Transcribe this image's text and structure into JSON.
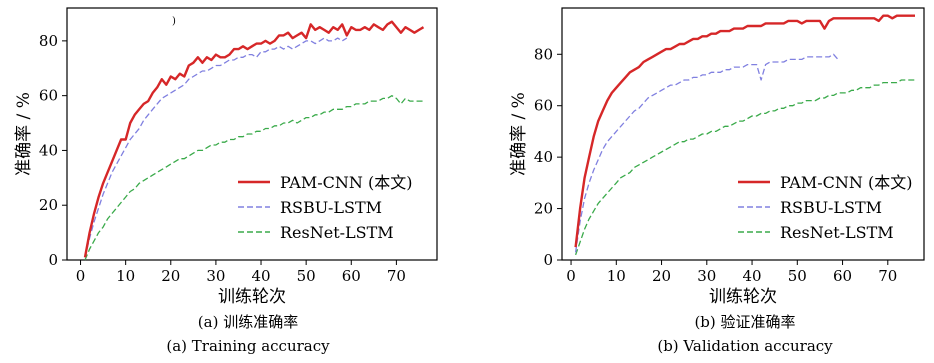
{
  "colors": {
    "pam": "#d62728",
    "rsbu": "#8080e0",
    "resnet": "#3aaa4a"
  },
  "chart_data": [
    {
      "type": "line",
      "stray_mark": ")",
      "xlabel": "训练轮次",
      "ylabel": "准确率 / %",
      "xlim": [
        -3,
        79
      ],
      "ylim": [
        0,
        92
      ],
      "xticks": [
        0,
        10,
        20,
        30,
        40,
        50,
        60,
        70
      ],
      "yticks": [
        0,
        20,
        40,
        60,
        80
      ],
      "legend_position": "lower-right",
      "caption_zh": "(a) 训练准确率",
      "caption_en": "(a) Training accuracy",
      "series": [
        {
          "name": "PAM-CNN (本文)",
          "style": "solid",
          "color_key": "pam",
          "x": [
            1,
            2,
            3,
            4,
            5,
            6,
            7,
            8,
            9,
            10,
            11,
            12,
            13,
            14,
            15,
            16,
            17,
            18,
            19,
            20,
            21,
            22,
            23,
            24,
            25,
            26,
            27,
            28,
            29,
            30,
            31,
            32,
            33,
            34,
            35,
            36,
            37,
            38,
            39,
            40,
            41,
            42,
            43,
            44,
            45,
            46,
            47,
            48,
            49,
            50,
            51,
            52,
            53,
            54,
            55,
            56,
            57,
            58,
            59,
            60,
            61,
            62,
            63,
            64,
            65,
            66,
            67,
            68,
            69,
            70,
            71,
            72,
            73,
            74,
            75,
            76
          ],
          "values": [
            1,
            10,
            17,
            23,
            28,
            32,
            36,
            40,
            44,
            44,
            50,
            53,
            55,
            57,
            58,
            61,
            63,
            66,
            64,
            67,
            66,
            68,
            67,
            71,
            72,
            74,
            72,
            74,
            73,
            75,
            74,
            74,
            75,
            77,
            77,
            78,
            77,
            78,
            79,
            79,
            80,
            79,
            80,
            82,
            82,
            83,
            81,
            82,
            83,
            81,
            86,
            84,
            85,
            84,
            83,
            85,
            84,
            86,
            82,
            85,
            84,
            84,
            85,
            84,
            86,
            85,
            84,
            86,
            87,
            85,
            83,
            85,
            84,
            83,
            84,
            85
          ]
        },
        {
          "name": "RSBU-LSTM",
          "style": "dash",
          "color_key": "rsbu",
          "x": [
            1,
            2,
            3,
            4,
            5,
            6,
            7,
            8,
            9,
            10,
            11,
            12,
            13,
            14,
            15,
            16,
            17,
            18,
            19,
            20,
            21,
            22,
            23,
            24,
            25,
            26,
            27,
            28,
            29,
            30,
            31,
            32,
            33,
            34,
            35,
            36,
            37,
            38,
            39,
            40,
            41,
            42,
            43,
            44,
            45,
            46,
            47,
            48,
            49,
            50,
            51,
            52,
            53,
            54,
            55,
            56,
            57,
            58,
            59
          ],
          "values": [
            1,
            8,
            14,
            19,
            24,
            28,
            32,
            35,
            38,
            41,
            44,
            46,
            48,
            51,
            53,
            55,
            57,
            59,
            60,
            61,
            62,
            63,
            64,
            66,
            67,
            68,
            69,
            69,
            70,
            71,
            71,
            72,
            73,
            73,
            74,
            74,
            75,
            75,
            74,
            76,
            76,
            77,
            77,
            78,
            77,
            78,
            77,
            78,
            79,
            80,
            80,
            79,
            80,
            81,
            80,
            80,
            81,
            80,
            81
          ]
        },
        {
          "name": "ResNet-LSTM",
          "style": "dash",
          "color_key": "resnet",
          "x": [
            1,
            2,
            3,
            4,
            5,
            6,
            7,
            8,
            9,
            10,
            11,
            12,
            13,
            14,
            15,
            16,
            17,
            18,
            19,
            20,
            21,
            22,
            23,
            24,
            25,
            26,
            27,
            28,
            29,
            30,
            31,
            32,
            33,
            34,
            35,
            36,
            37,
            38,
            39,
            40,
            41,
            42,
            43,
            44,
            45,
            46,
            47,
            48,
            49,
            50,
            51,
            52,
            53,
            54,
            55,
            56,
            57,
            58,
            59,
            60,
            61,
            62,
            63,
            64,
            65,
            66,
            67,
            68,
            69,
            70,
            71,
            72,
            73,
            74,
            75,
            76
          ],
          "values": [
            0,
            4,
            7,
            10,
            12,
            15,
            17,
            19,
            21,
            23,
            25,
            26,
            28,
            29,
            30,
            31,
            32,
            33,
            34,
            35,
            36,
            37,
            37,
            38,
            39,
            40,
            40,
            41,
            42,
            42,
            43,
            43,
            44,
            44,
            45,
            45,
            46,
            46,
            47,
            47,
            48,
            48,
            49,
            49,
            50,
            50,
            51,
            50,
            51,
            52,
            52,
            53,
            53,
            54,
            54,
            55,
            55,
            55,
            56,
            56,
            57,
            57,
            57,
            58,
            58,
            58,
            59,
            59,
            60,
            59,
            57,
            59,
            58,
            58,
            58,
            58
          ]
        }
      ]
    },
    {
      "type": "line",
      "xlabel": "训练轮次",
      "ylabel": "准确率 / %",
      "xlim": [
        -2,
        78
      ],
      "ylim": [
        0,
        98
      ],
      "xticks": [
        0,
        10,
        20,
        30,
        40,
        50,
        60,
        70
      ],
      "yticks": [
        0,
        20,
        40,
        60,
        80
      ],
      "legend_position": "lower-right",
      "caption_zh": "(b) 验证准确率",
      "caption_en": "(b) Validation accuracy",
      "series": [
        {
          "name": "PAM-CNN (本文)",
          "style": "solid",
          "color_key": "pam",
          "x": [
            1,
            2,
            3,
            4,
            5,
            6,
            7,
            8,
            9,
            10,
            11,
            12,
            13,
            14,
            15,
            16,
            17,
            18,
            19,
            20,
            21,
            22,
            23,
            24,
            25,
            26,
            27,
            28,
            29,
            30,
            31,
            32,
            33,
            34,
            35,
            36,
            37,
            38,
            39,
            40,
            41,
            42,
            43,
            44,
            45,
            46,
            47,
            48,
            49,
            50,
            51,
            52,
            53,
            54,
            55,
            56,
            57,
            58,
            59,
            60,
            61,
            62,
            63,
            64,
            65,
            66,
            67,
            68,
            69,
            70,
            71,
            72,
            73,
            74,
            75,
            76
          ],
          "values": [
            5,
            20,
            32,
            40,
            48,
            54,
            58,
            62,
            65,
            67,
            69,
            71,
            73,
            74,
            75,
            77,
            78,
            79,
            80,
            81,
            82,
            82,
            83,
            84,
            84,
            85,
            86,
            86,
            87,
            87,
            88,
            88,
            89,
            89,
            89,
            90,
            90,
            90,
            91,
            91,
            91,
            91,
            92,
            92,
            92,
            92,
            92,
            93,
            93,
            93,
            92,
            93,
            93,
            93,
            93,
            90,
            93,
            94,
            94,
            94,
            94,
            94,
            94,
            94,
            94,
            94,
            94,
            93,
            95,
            95,
            94,
            95,
            95,
            95,
            95,
            95
          ]
        },
        {
          "name": "RSBU-LSTM",
          "style": "dash",
          "color_key": "rsbu",
          "x": [
            1,
            2,
            3,
            4,
            5,
            6,
            7,
            8,
            9,
            10,
            11,
            12,
            13,
            14,
            15,
            16,
            17,
            18,
            19,
            20,
            21,
            22,
            23,
            24,
            25,
            26,
            27,
            28,
            29,
            30,
            31,
            32,
            33,
            34,
            35,
            36,
            37,
            38,
            39,
            40,
            41,
            42,
            43,
            44,
            45,
            46,
            47,
            48,
            49,
            50,
            51,
            52,
            53,
            54,
            55,
            56,
            57,
            58,
            59
          ],
          "values": [
            3,
            15,
            24,
            30,
            35,
            39,
            43,
            46,
            48,
            50,
            52,
            54,
            56,
            58,
            59,
            61,
            63,
            64,
            65,
            66,
            67,
            68,
            68,
            69,
            70,
            70,
            71,
            71,
            72,
            72,
            73,
            73,
            73,
            74,
            74,
            75,
            75,
            75,
            76,
            76,
            76,
            70,
            76,
            77,
            77,
            77,
            77,
            78,
            78,
            78,
            78,
            79,
            79,
            79,
            79,
            79,
            79,
            80,
            78
          ]
        },
        {
          "name": "ResNet-LSTM",
          "style": "dash",
          "color_key": "resnet",
          "x": [
            1,
            2,
            3,
            4,
            5,
            6,
            7,
            8,
            9,
            10,
            11,
            12,
            13,
            14,
            15,
            16,
            17,
            18,
            19,
            20,
            21,
            22,
            23,
            24,
            25,
            26,
            27,
            28,
            29,
            30,
            31,
            32,
            33,
            34,
            35,
            36,
            37,
            38,
            39,
            40,
            41,
            42,
            43,
            44,
            45,
            46,
            47,
            48,
            49,
            50,
            51,
            52,
            53,
            54,
            55,
            56,
            57,
            58,
            59,
            60,
            61,
            62,
            63,
            64,
            65,
            66,
            67,
            68,
            69,
            70,
            71,
            72,
            73,
            74,
            75,
            76
          ],
          "values": [
            2,
            7,
            12,
            16,
            19,
            22,
            24,
            26,
            28,
            30,
            32,
            33,
            34,
            36,
            37,
            38,
            39,
            40,
            41,
            42,
            43,
            44,
            45,
            46,
            46,
            47,
            47,
            48,
            49,
            49,
            50,
            50,
            51,
            52,
            52,
            53,
            54,
            54,
            55,
            56,
            56,
            57,
            57,
            58,
            58,
            59,
            59,
            60,
            60,
            61,
            61,
            62,
            62,
            62,
            63,
            63,
            64,
            64,
            65,
            65,
            65,
            66,
            66,
            67,
            67,
            67,
            68,
            68,
            69,
            69,
            69,
            69,
            70,
            70,
            70,
            70
          ]
        }
      ]
    }
  ]
}
